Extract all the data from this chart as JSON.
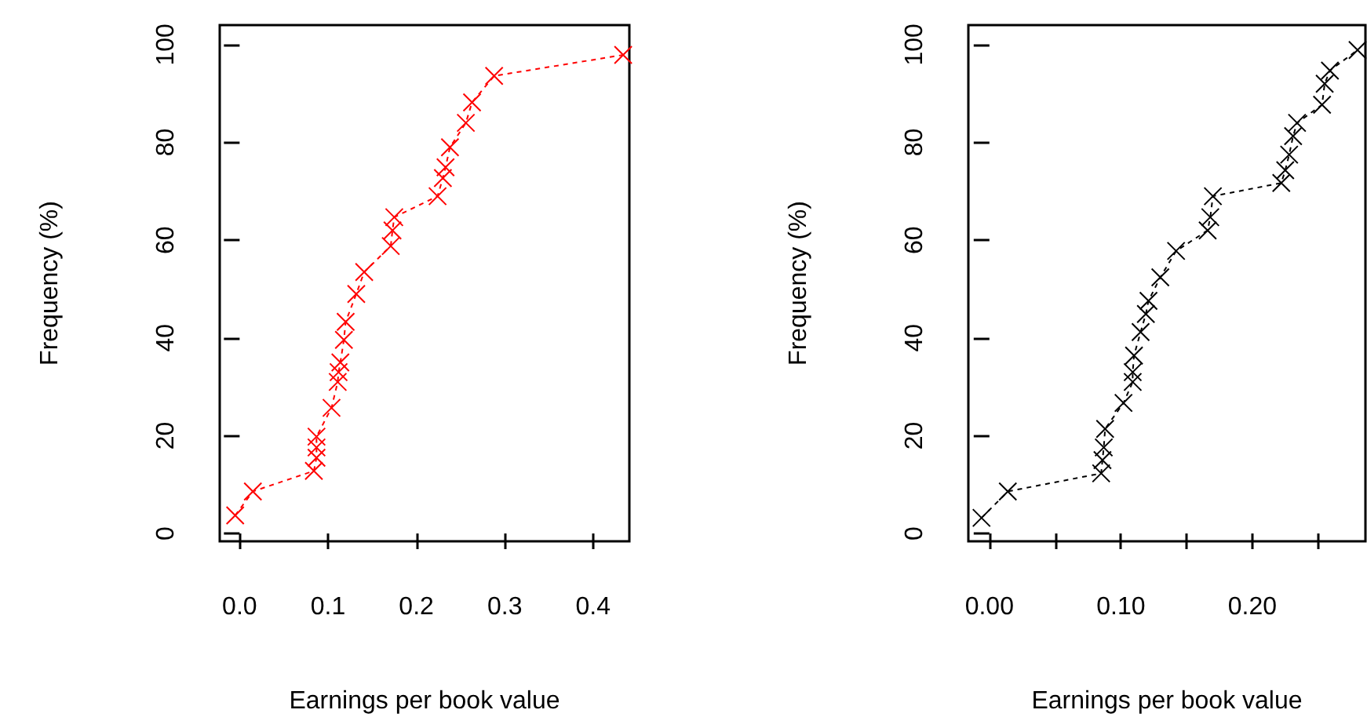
{
  "chart_data": [
    {
      "type": "line",
      "xlabel": "Earnings per book value",
      "ylabel": "Frequency (%)",
      "xlim": [
        -0.0225,
        0.441
      ],
      "xticks": [
        {
          "value": 0,
          "label": "0.0"
        },
        0.1,
        0.2,
        0.3,
        0.4
      ],
      "ylim": [
        -1.6,
        104
      ],
      "yticks": [
        0,
        20,
        40,
        60,
        80,
        100
      ],
      "marker": "cross",
      "line_style": "dashed",
      "series": [
        {
          "color": "#ff0000",
          "x": [
            -0.005,
            0.015,
            0.084,
            0.087,
            0.087,
            0.087,
            0.104,
            0.111,
            0.112,
            0.114,
            0.118,
            0.12,
            0.132,
            0.141,
            0.171,
            0.173,
            0.175,
            0.224,
            0.23,
            0.233,
            0.238,
            0.256,
            0.263,
            0.288,
            0.434
          ],
          "values": [
            3.7,
            8.6,
            12.8,
            15.5,
            17.6,
            19.8,
            25.7,
            31,
            33,
            35,
            39.6,
            43.3,
            49,
            53.5,
            58.8,
            62,
            64.7,
            69,
            72.7,
            74.9,
            79,
            84,
            88.2,
            93.6,
            97.9
          ]
        }
      ]
    },
    {
      "type": "line",
      "xlabel": "Earnings per book value",
      "ylabel": "Frequency (%)",
      "xlim": [
        -0.016,
        0.286
      ],
      "xticks": [
        {
          "value": 0,
          "label": "0.00"
        },
        {
          "value": 0.05,
          "label": null
        },
        {
          "value": 0.1,
          "label": "0.10"
        },
        {
          "value": 0.15,
          "label": null
        },
        {
          "value": 0.2,
          "label": "0.20"
        },
        {
          "value": 0.25,
          "label": null
        }
      ],
      "ylim": [
        -1.6,
        104
      ],
      "yticks": [
        0,
        20,
        40,
        60,
        80,
        100
      ],
      "marker": "cross",
      "line_style": "dashed",
      "series": [
        {
          "color": "#000000",
          "x": [
            -0.006,
            0.014,
            0.085,
            0.086,
            0.087,
            0.088,
            0.102,
            0.109,
            0.109,
            0.11,
            0.115,
            0.119,
            0.121,
            0.13,
            0.142,
            0.166,
            0.168,
            0.17,
            0.222,
            0.225,
            0.228,
            0.231,
            0.234,
            0.253,
            0.255,
            0.259,
            0.28
          ],
          "values": [
            3.2,
            8.6,
            12.3,
            15,
            17.6,
            21.4,
            26.7,
            31,
            33,
            36.4,
            41.2,
            44.9,
            47.6,
            52.4,
            57.8,
            62,
            64.7,
            69,
            71.7,
            74.3,
            77.5,
            81.3,
            84,
            87.7,
            92,
            94.7,
            98.9
          ]
        }
      ]
    }
  ]
}
